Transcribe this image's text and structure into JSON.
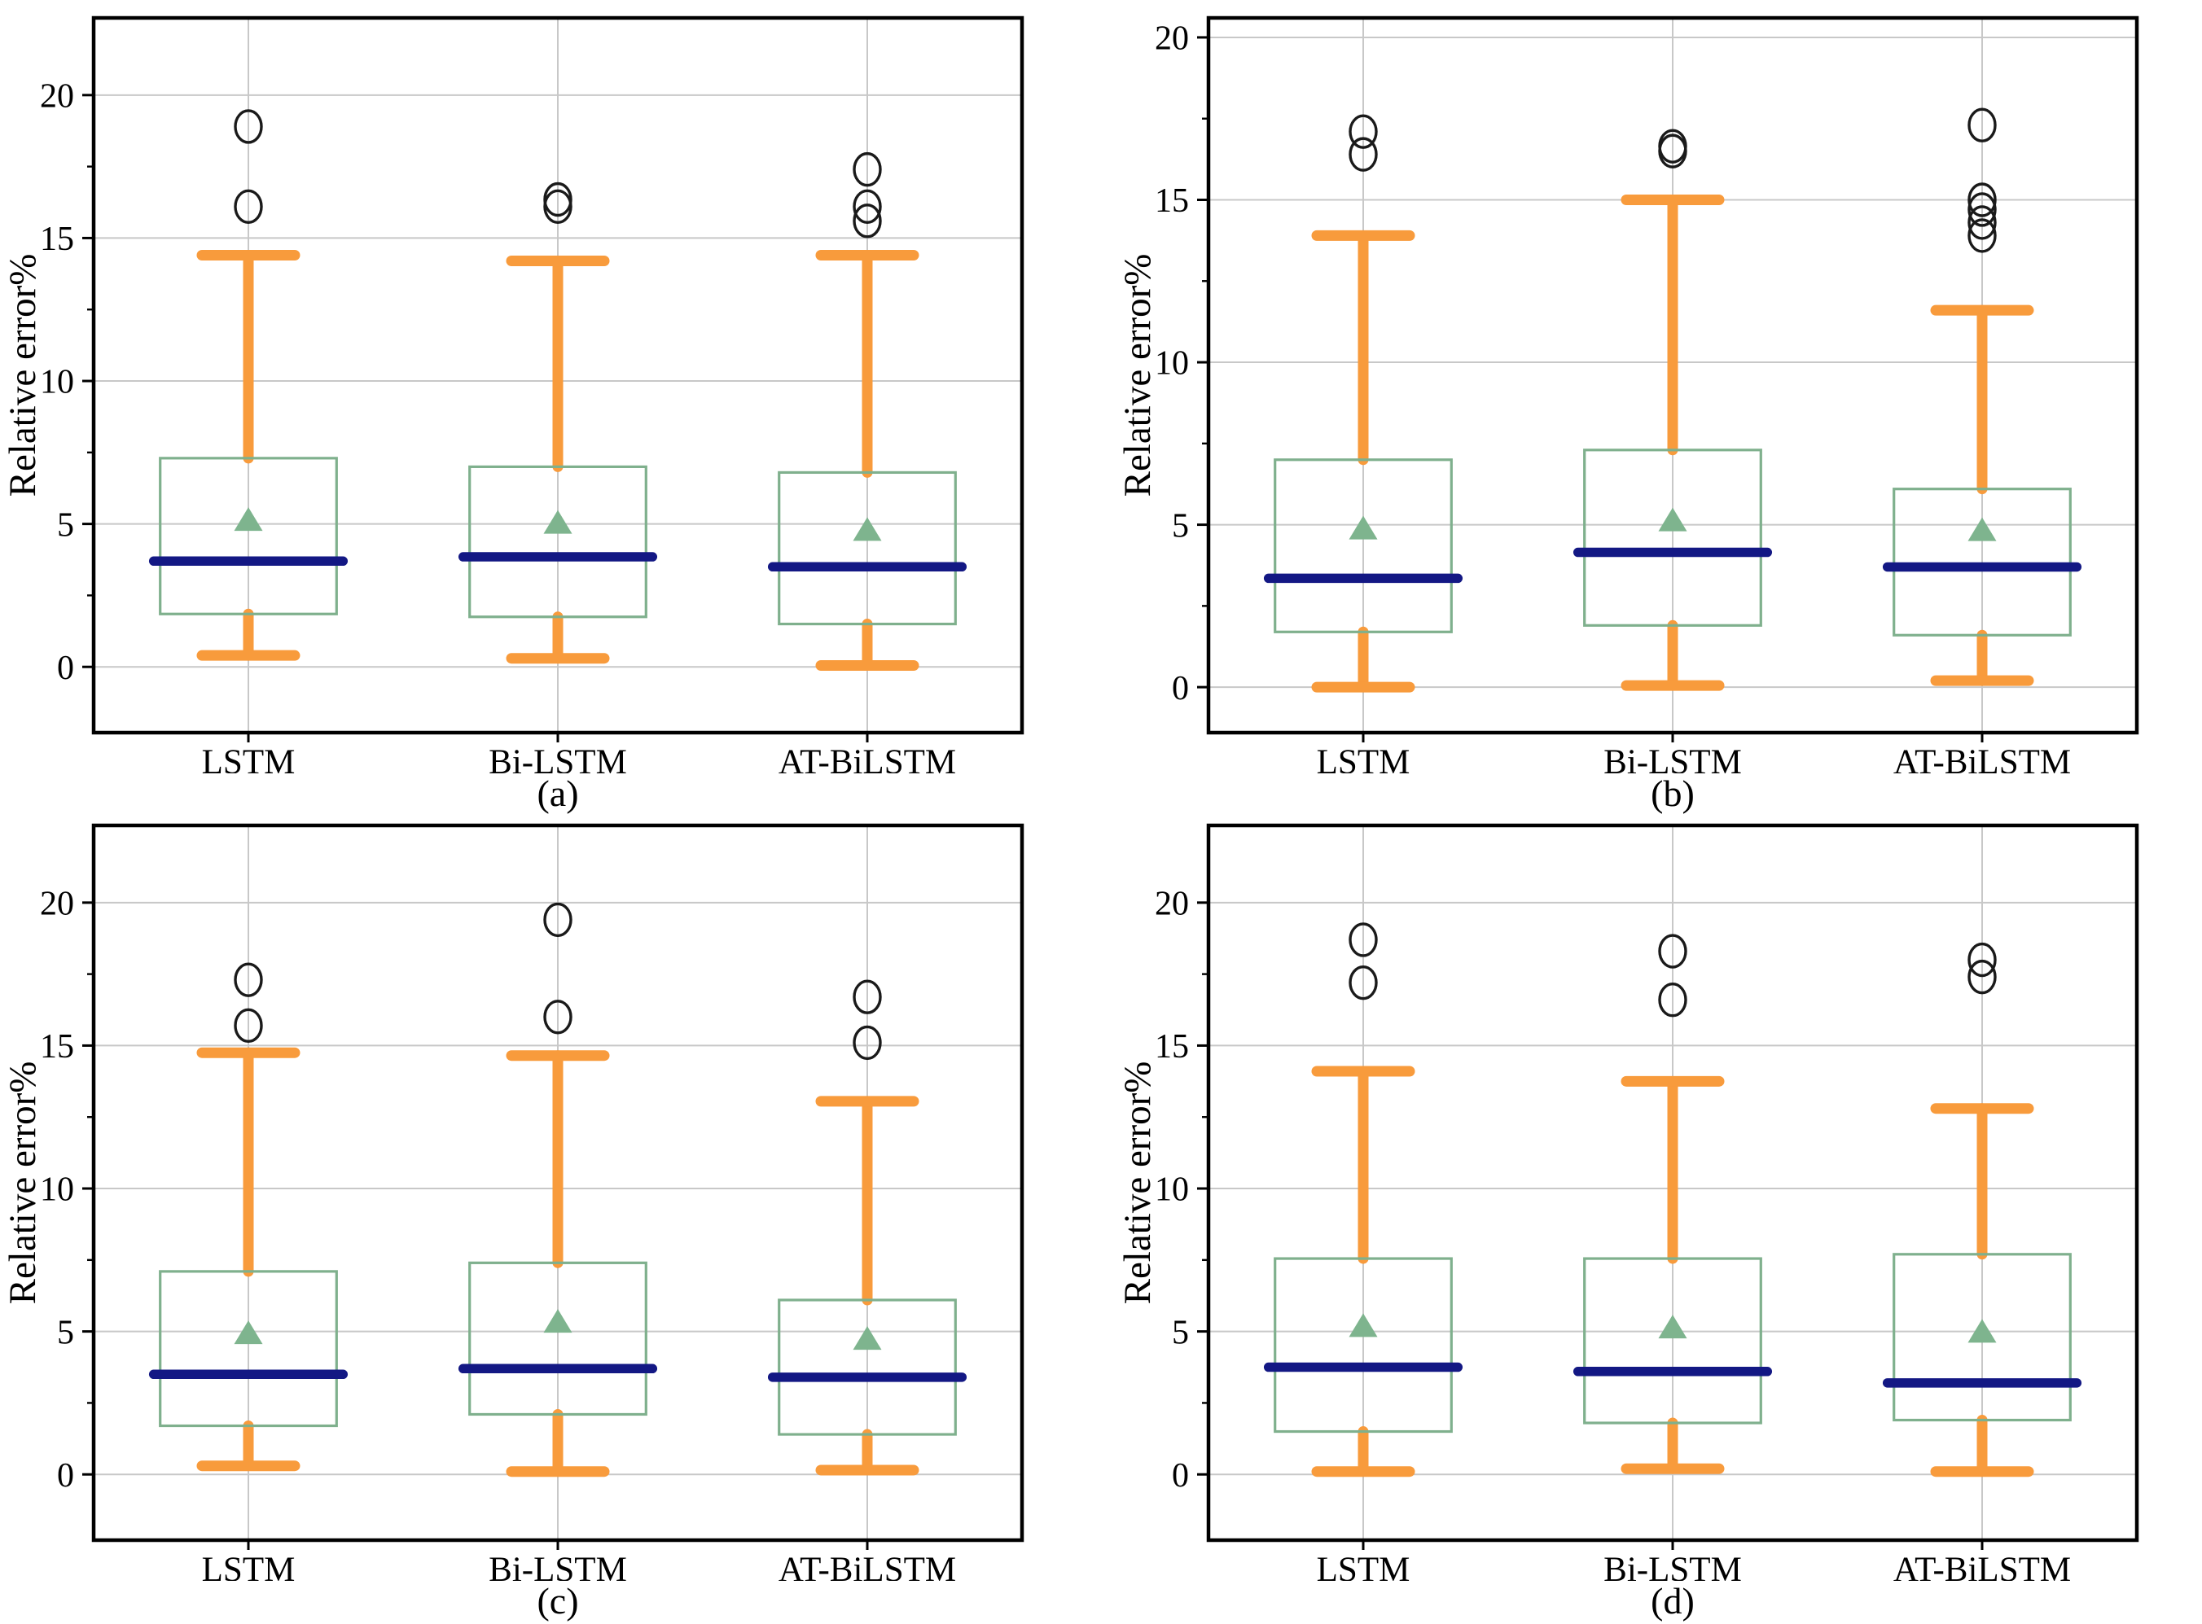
{
  "page": {
    "background": "#ffffff"
  },
  "colors": {
    "whisker": "#F89B3C",
    "box_edge": "#7FB08D",
    "median": "#131884",
    "mean_marker": "#7EB48E",
    "outlier_edge": "#1A1A1A",
    "grid": "#C8C8C8",
    "spine": "#000000",
    "tick": "#000000",
    "text": "#000000"
  },
  "chart_data": [
    {
      "id": "a",
      "caption": "(a)",
      "type": "box",
      "ylabel": "Relative error%",
      "xlabel": "",
      "categories": [
        "LSTM",
        "Bi-LSTM",
        "AT-BiLSTM"
      ],
      "yticks": [
        0,
        5,
        10,
        15,
        20
      ],
      "minor_yticks": [
        2.5,
        7.5,
        12.5,
        17.5
      ],
      "ylim": [
        -2.3,
        22.7
      ],
      "grid": true,
      "legend": "none",
      "series": [
        {
          "category": "LSTM",
          "whisker_low": 0.4,
          "q1": 1.85,
          "median": 3.7,
          "mean": 5.1,
          "q3": 7.3,
          "whisker_high": 14.4,
          "outliers": [
            16.1,
            18.9
          ]
        },
        {
          "category": "Bi-LSTM",
          "whisker_low": 0.3,
          "q1": 1.75,
          "median": 3.85,
          "mean": 5.0,
          "q3": 7.0,
          "whisker_high": 14.2,
          "outliers": [
            16.1,
            16.35
          ]
        },
        {
          "category": "AT-BiLSTM",
          "whisker_low": 0.05,
          "q1": 1.5,
          "median": 3.5,
          "mean": 4.75,
          "q3": 6.8,
          "whisker_high": 14.4,
          "outliers": [
            15.6,
            16.1,
            17.4
          ]
        }
      ]
    },
    {
      "id": "b",
      "caption": "(b)",
      "type": "box",
      "ylabel": "Relative error%",
      "xlabel": "",
      "categories": [
        "LSTM",
        "Bi-LSTM",
        "AT-BiLSTM"
      ],
      "yticks": [
        0,
        5,
        10,
        15,
        20
      ],
      "minor_yticks": [
        2.5,
        7.5,
        12.5,
        17.5
      ],
      "ylim": [
        -1.4,
        20.6
      ],
      "grid": true,
      "legend": "none",
      "series": [
        {
          "category": "LSTM",
          "whisker_low": 0.0,
          "q1": 1.7,
          "median": 3.35,
          "mean": 4.85,
          "q3": 7.0,
          "whisker_high": 13.9,
          "outliers": [
            16.4,
            17.1
          ]
        },
        {
          "category": "Bi-LSTM",
          "whisker_low": 0.05,
          "q1": 1.9,
          "median": 4.15,
          "mean": 5.1,
          "q3": 7.3,
          "whisker_high": 15.0,
          "outliers": [
            16.5,
            16.65
          ]
        },
        {
          "category": "AT-BiLSTM",
          "whisker_low": 0.2,
          "q1": 1.6,
          "median": 3.7,
          "mean": 4.8,
          "q3": 6.1,
          "whisker_high": 11.6,
          "outliers": [
            13.9,
            14.3,
            14.7,
            15.0,
            17.3
          ]
        }
      ]
    },
    {
      "id": "c",
      "caption": "(c)",
      "type": "box",
      "ylabel": "Relative error%",
      "xlabel": "",
      "categories": [
        "LSTM",
        "Bi-LSTM",
        "AT-BiLSTM"
      ],
      "yticks": [
        0,
        5,
        10,
        15,
        20
      ],
      "minor_yticks": [
        2.5,
        7.5,
        12.5,
        17.5
      ],
      "ylim": [
        -2.3,
        22.7
      ],
      "grid": true,
      "legend": "none",
      "series": [
        {
          "category": "LSTM",
          "whisker_low": 0.3,
          "q1": 1.7,
          "median": 3.5,
          "mean": 4.9,
          "q3": 7.1,
          "whisker_high": 14.75,
          "outliers": [
            15.7,
            17.3
          ]
        },
        {
          "category": "Bi-LSTM",
          "whisker_low": 0.1,
          "q1": 2.1,
          "median": 3.7,
          "mean": 5.3,
          "q3": 7.4,
          "whisker_high": 14.65,
          "outliers": [
            16.0,
            19.4
          ]
        },
        {
          "category": "AT-BiLSTM",
          "whisker_low": 0.15,
          "q1": 1.4,
          "median": 3.4,
          "mean": 4.7,
          "q3": 6.1,
          "whisker_high": 13.05,
          "outliers": [
            15.1,
            16.7
          ]
        }
      ]
    },
    {
      "id": "d",
      "caption": "(d)",
      "type": "box",
      "ylabel": "Relative error%",
      "xlabel": "",
      "categories": [
        "LSTM",
        "Bi-LSTM",
        "AT-BiLSTM"
      ],
      "yticks": [
        0,
        5,
        10,
        15,
        20
      ],
      "minor_yticks": [
        2.5,
        7.5,
        12.5,
        17.5
      ],
      "ylim": [
        -2.3,
        22.7
      ],
      "grid": true,
      "legend": "none",
      "series": [
        {
          "category": "LSTM",
          "whisker_low": 0.1,
          "q1": 1.5,
          "median": 3.75,
          "mean": 5.15,
          "q3": 7.55,
          "whisker_high": 14.1,
          "outliers": [
            17.2,
            18.7
          ]
        },
        {
          "category": "Bi-LSTM",
          "whisker_low": 0.2,
          "q1": 1.8,
          "median": 3.6,
          "mean": 5.1,
          "q3": 7.55,
          "whisker_high": 13.75,
          "outliers": [
            16.6,
            18.3
          ]
        },
        {
          "category": "AT-BiLSTM",
          "whisker_low": 0.1,
          "q1": 1.9,
          "median": 3.2,
          "mean": 4.95,
          "q3": 7.7,
          "whisker_high": 12.8,
          "outliers": [
            17.4,
            18.0
          ]
        }
      ]
    }
  ]
}
